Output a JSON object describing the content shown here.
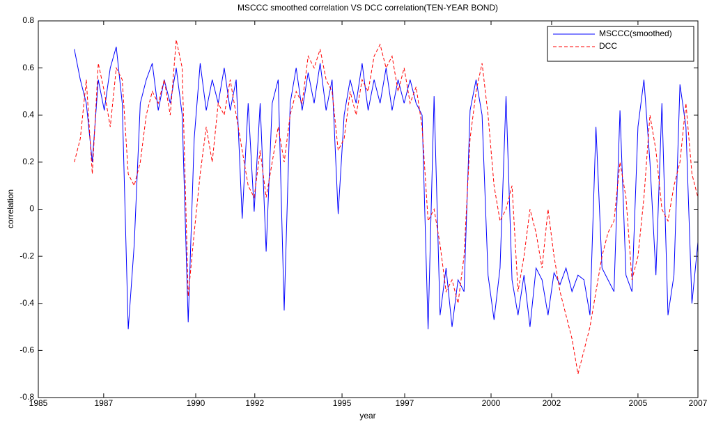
{
  "chart_data": {
    "type": "line",
    "title": "MSCCC smoothed correlation VS DCC correlation(TEN-YEAR BOND)",
    "x_label": "year",
    "y_label": "correlation",
    "xlim": [
      1985,
      2007
    ],
    "xticks": [
      1985,
      {
        "value": 1987.18,
        "label": "1987"
      },
      {
        "value": 1990.25,
        "label": "1990"
      },
      {
        "value": 1992.22,
        "label": "1992"
      },
      {
        "value": 1995.13,
        "label": "1995"
      },
      {
        "value": 1997.22,
        "label": "1997"
      },
      {
        "value": 2000.1,
        "label": "2000"
      },
      {
        "value": 2002.12,
        "label": "2002"
      },
      2005,
      2007
    ],
    "ylim": [
      -0.8,
      0.8
    ],
    "yticks": [
      -0.8,
      -0.6,
      -0.4,
      -0.2,
      0,
      0.2,
      0.4,
      0.6,
      0.8
    ],
    "grid": false,
    "legend": "upper right",
    "x": [
      1986.2,
      1986.4,
      1986.6,
      1986.8,
      1987.0,
      1987.2,
      1987.4,
      1987.6,
      1987.8,
      1988.0,
      1988.2,
      1988.4,
      1988.6,
      1988.8,
      1989.0,
      1989.2,
      1989.4,
      1989.6,
      1989.8,
      1990.0,
      1990.2,
      1990.4,
      1990.6,
      1990.8,
      1991.0,
      1991.2,
      1991.4,
      1991.6,
      1991.8,
      1992.0,
      1992.2,
      1992.4,
      1992.6,
      1992.8,
      1993.0,
      1993.2,
      1993.4,
      1993.6,
      1993.8,
      1994.0,
      1994.2,
      1994.4,
      1994.6,
      1994.8,
      1995.0,
      1995.2,
      1995.4,
      1995.6,
      1995.8,
      1996.0,
      1996.2,
      1996.4,
      1996.6,
      1996.8,
      1997.0,
      1997.2,
      1997.4,
      1997.6,
      1997.8,
      1998.0,
      1998.2,
      1998.4,
      1998.6,
      1998.8,
      1999.0,
      1999.2,
      1999.4,
      1999.6,
      1999.8,
      2000.0,
      2000.2,
      2000.4,
      2000.6,
      2000.8,
      2001.0,
      2001.2,
      2001.4,
      2001.6,
      2001.8,
      2002.0,
      2002.2,
      2002.4,
      2002.6,
      2002.8,
      2003.0,
      2003.2,
      2003.4,
      2003.6,
      2003.8,
      2004.0,
      2004.2,
      2004.4,
      2004.6,
      2004.8,
      2005.0,
      2005.2,
      2005.4,
      2005.6,
      2005.8,
      2006.0,
      2006.2,
      2006.4,
      2006.6,
      2006.8,
      2007.0
    ],
    "series": [
      {
        "name": "MSCCC(smoothed)",
        "color": "#0000ff",
        "style": "solid",
        "values": [
          0.68,
          0.55,
          0.45,
          0.2,
          0.55,
          0.42,
          0.6,
          0.69,
          0.45,
          -0.51,
          -0.15,
          0.45,
          0.55,
          0.62,
          0.42,
          0.55,
          0.45,
          0.6,
          0.4,
          -0.48,
          0.3,
          0.62,
          0.42,
          0.55,
          0.45,
          0.6,
          0.42,
          0.55,
          -0.04,
          0.45,
          -0.01,
          0.45,
          -0.18,
          0.45,
          0.55,
          -0.43,
          0.45,
          0.6,
          0.42,
          0.58,
          0.45,
          0.62,
          0.42,
          0.55,
          -0.02,
          0.4,
          0.55,
          0.45,
          0.62,
          0.42,
          0.55,
          0.45,
          0.6,
          0.42,
          0.55,
          0.45,
          0.55,
          0.45,
          0.4,
          -0.51,
          0.48,
          -0.45,
          -0.25,
          -0.5,
          -0.3,
          -0.35,
          0.42,
          0.55,
          0.4,
          -0.28,
          -0.47,
          -0.25,
          0.48,
          -0.3,
          -0.45,
          -0.28,
          -0.5,
          -0.25,
          -0.3,
          -0.45,
          -0.27,
          -0.32,
          -0.25,
          -0.35,
          -0.28,
          -0.3,
          -0.45,
          0.35,
          -0.25,
          -0.3,
          -0.35,
          0.42,
          -0.28,
          -0.35,
          0.35,
          0.55,
          0.2,
          -0.28,
          0.45,
          -0.45,
          -0.28,
          0.53,
          0.35,
          -0.4,
          -0.14
        ]
      },
      {
        "name": "DCC",
        "color": "#ff0000",
        "style": "dashed",
        "values": [
          0.2,
          0.3,
          0.55,
          0.15,
          0.62,
          0.5,
          0.35,
          0.6,
          0.55,
          0.15,
          0.1,
          0.2,
          0.4,
          0.5,
          0.45,
          0.55,
          0.4,
          0.72,
          0.6,
          -0.37,
          -0.1,
          0.15,
          0.35,
          0.2,
          0.45,
          0.4,
          0.55,
          0.4,
          0.25,
          0.1,
          0.05,
          0.25,
          0.05,
          0.2,
          0.35,
          0.2,
          0.4,
          0.5,
          0.45,
          0.65,
          0.6,
          0.68,
          0.55,
          0.5,
          0.25,
          0.3,
          0.5,
          0.4,
          0.55,
          0.5,
          0.65,
          0.7,
          0.6,
          0.65,
          0.5,
          0.6,
          0.45,
          0.52,
          0.35,
          -0.05,
          0,
          -0.15,
          -0.35,
          -0.3,
          -0.4,
          -0.2,
          0.3,
          0.5,
          0.62,
          0.4,
          0.1,
          -0.05,
          0,
          0.1,
          -0.35,
          -0.2,
          0,
          -0.1,
          -0.25,
          0,
          -0.2,
          -0.35,
          -0.45,
          -0.55,
          -0.7,
          -0.6,
          -0.5,
          -0.35,
          -0.2,
          -0.1,
          -0.05,
          0.2,
          0.05,
          -0.3,
          -0.2,
          0.05,
          0.4,
          0.25,
          0,
          -0.05,
          0.1,
          0.2,
          0.45,
          0.15,
          0.05
        ]
      }
    ]
  }
}
